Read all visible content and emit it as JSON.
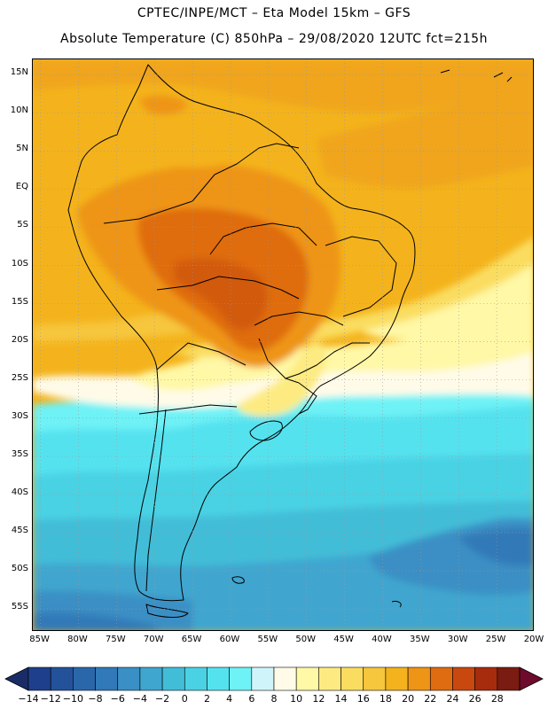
{
  "header": {
    "line1": "CPTEC/INPE/MCT –  Eta Model 15km – GFS",
    "line2": "Absolute Temperature (C) 850hPa – 29/08/2020 12UTC fct=215h"
  },
  "map": {
    "lat_labels": [
      "15N",
      "10N",
      "5N",
      "EQ",
      "5S",
      "10S",
      "15S",
      "20S",
      "25S",
      "30S",
      "35S",
      "40S",
      "45S",
      "50S",
      "55S"
    ],
    "lon_labels": [
      "85W",
      "80W",
      "75W",
      "70W",
      "65W",
      "60W",
      "55W",
      "50W",
      "45W",
      "40W",
      "35W",
      "30W",
      "25W",
      "20W"
    ],
    "lat_range": [
      17,
      -58
    ],
    "lon_range": [
      -86,
      -20
    ],
    "region": "South America",
    "variable": "Absolute Temperature",
    "level": "850hPa",
    "units": "C"
  },
  "colorbar": {
    "labels": [
      "-14",
      "-12",
      "-10",
      "-8",
      "-6",
      "-4",
      "-2",
      "0",
      "2",
      "4",
      "6",
      "8",
      "10",
      "12",
      "14",
      "16",
      "18",
      "20",
      "22",
      "24",
      "26",
      "28"
    ],
    "colors": [
      "#1e3f8c",
      "#23529a",
      "#2a66aa",
      "#3179b8",
      "#3a8fc4",
      "#3fa6cf",
      "#42bdd8",
      "#4ad2e4",
      "#55e2ef",
      "#6ef2f6",
      "#cff5fb",
      "#fffbe8",
      "#fff8a6",
      "#fdeb82",
      "#fadd60",
      "#f6c63c",
      "#f4b31c",
      "#ee9417",
      "#df6c10",
      "#c9480f",
      "#a62c0d",
      "#7a1c11"
    ],
    "triangle_low": "#1a2c66",
    "triangle_high": "#6e0a2c"
  }
}
